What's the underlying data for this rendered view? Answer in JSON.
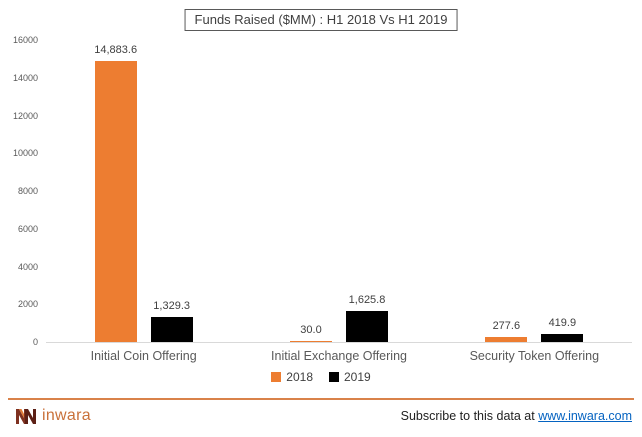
{
  "header": {
    "title": "Funds Raised ($MM) : H1 2018 Vs H1 2019"
  },
  "chart_data": {
    "type": "bar",
    "title": "Funds Raised ($MM) : H1 2018 Vs H1 2019",
    "categories": [
      "Initial Coin Offering",
      "Initial Exchange Offering",
      "Security Token Offering"
    ],
    "series": [
      {
        "name": "2018",
        "color": "#ED7D31",
        "values": [
          14883.6,
          30.0,
          277.6
        ],
        "value_labels": [
          "14,883.6",
          "30.0",
          "277.6"
        ]
      },
      {
        "name": "2019",
        "color": "#000000",
        "values": [
          1329.3,
          1625.8,
          419.9
        ],
        "value_labels": [
          "1,329.3",
          "1,625.8",
          "419.9"
        ]
      }
    ],
    "ylim": [
      0,
      16000
    ],
    "yticks": [
      0,
      2000,
      4000,
      6000,
      8000,
      10000,
      12000,
      14000,
      16000
    ],
    "grid": false,
    "legend_position": "bottom-center",
    "axis_text_color": "#595959",
    "value_label_color": "#404040",
    "baseline_color": "#D9D9D9"
  },
  "legend": {
    "items": [
      {
        "label": "2018",
        "color": "#ED7D31"
      },
      {
        "label": "2019",
        "color": "#000000"
      }
    ]
  },
  "footer": {
    "divider_color": "#D9824A",
    "logo_text": "inwara",
    "subscribe_prefix": "Subscribe to this data at",
    "link_text": "www.inwara.com"
  }
}
